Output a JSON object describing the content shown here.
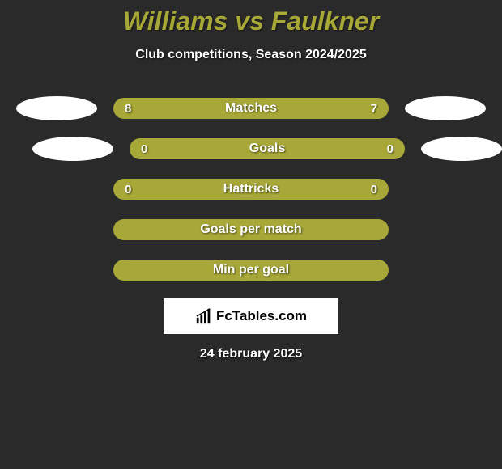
{
  "title": "Williams vs Faulkner",
  "subtitle": "Club competitions, Season 2024/2025",
  "rows": [
    {
      "label": "Matches",
      "left": "8",
      "right": "7",
      "show_left_oval": true,
      "show_right_oval": true,
      "oval_offset": false
    },
    {
      "label": "Goals",
      "left": "0",
      "right": "0",
      "show_left_oval": true,
      "show_right_oval": true,
      "oval_offset": true
    },
    {
      "label": "Hattricks",
      "left": "0",
      "right": "0",
      "show_left_oval": false,
      "show_right_oval": false,
      "oval_offset": false
    },
    {
      "label": "Goals per match",
      "left": "",
      "right": "",
      "show_left_oval": false,
      "show_right_oval": false,
      "oval_offset": false
    },
    {
      "label": "Min per goal",
      "left": "",
      "right": "",
      "show_left_oval": false,
      "show_right_oval": false,
      "oval_offset": false
    }
  ],
  "logo_text": "FcTables.com",
  "date": "24 february 2025",
  "colors": {
    "background": "#2a2a2a",
    "bar": "#a8a838",
    "title": "#a8a838",
    "text": "#ffffff",
    "oval": "#ffffff",
    "logo_bg": "#ffffff"
  }
}
